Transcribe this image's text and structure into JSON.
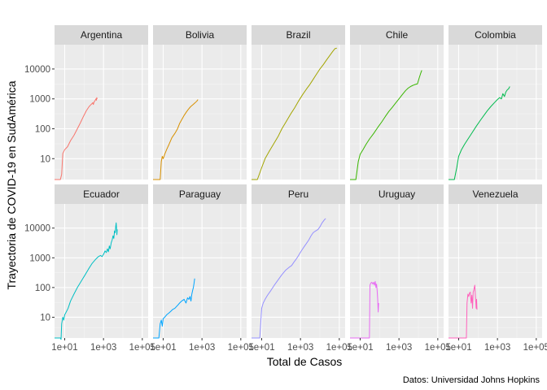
{
  "chart_data": {
    "type": "line",
    "title": "",
    "xlabel": "Total de Casos",
    "ylabel": "Trayectoria de COVID-19 en SudAmérica",
    "caption": "Datos: Universidad Johns Hopkins",
    "x_scale": "log10",
    "y_scale": "log10",
    "xlim": [
      3,
      200000
    ],
    "ylim": [
      2,
      65000
    ],
    "x_ticks": [
      10,
      1000,
      100000
    ],
    "x_tick_labels": [
      "1e+01",
      "1e+03",
      "1e+05"
    ],
    "y_ticks": [
      10,
      100,
      1000,
      10000
    ],
    "y_tick_labels": [
      "10",
      "100",
      "1000",
      "10000"
    ],
    "grid": true,
    "legend": "none",
    "series": [
      {
        "name": "Argentina",
        "color": "#F8766D",
        "points": [
          [
            3,
            2
          ],
          [
            6,
            2
          ],
          [
            7,
            3
          ],
          [
            8,
            15
          ],
          [
            10,
            20
          ],
          [
            14,
            25
          ],
          [
            20,
            40
          ],
          [
            30,
            60
          ],
          [
            45,
            100
          ],
          [
            65,
            160
          ],
          [
            90,
            250
          ],
          [
            130,
            400
          ],
          [
            180,
            550
          ],
          [
            230,
            650
          ],
          [
            260,
            700
          ],
          [
            280,
            750
          ],
          [
            300,
            650
          ],
          [
            330,
            800
          ],
          [
            360,
            850
          ],
          [
            390,
            950
          ],
          [
            410,
            1000
          ],
          [
            430,
            900
          ],
          [
            450,
            1100
          ],
          [
            480,
            1000
          ]
        ]
      },
      {
        "name": "Bolivia",
        "color": "#D89000",
        "points": [
          [
            3,
            2
          ],
          [
            7,
            2
          ],
          [
            8,
            8
          ],
          [
            9,
            12
          ],
          [
            10,
            10
          ],
          [
            12,
            14
          ],
          [
            15,
            20
          ],
          [
            20,
            30
          ],
          [
            28,
            50
          ],
          [
            40,
            70
          ],
          [
            55,
            100
          ],
          [
            70,
            150
          ],
          [
            90,
            200
          ],
          [
            120,
            280
          ],
          [
            160,
            370
          ],
          [
            200,
            450
          ],
          [
            260,
            550
          ],
          [
            350,
            650
          ],
          [
            450,
            750
          ],
          [
            550,
            850
          ],
          [
            620,
            950
          ]
        ]
      },
      {
        "name": "Brazil",
        "color": "#A3A500",
        "points": [
          [
            3,
            2
          ],
          [
            6,
            2
          ],
          [
            10,
            5
          ],
          [
            15,
            10
          ],
          [
            25,
            18
          ],
          [
            40,
            30
          ],
          [
            70,
            55
          ],
          [
            110,
            100
          ],
          [
            180,
            170
          ],
          [
            300,
            300
          ],
          [
            500,
            500
          ],
          [
            800,
            850
          ],
          [
            1300,
            1400
          ],
          [
            2000,
            2100
          ],
          [
            3000,
            3000
          ],
          [
            4500,
            4500
          ],
          [
            6500,
            6500
          ],
          [
            9500,
            9500
          ],
          [
            15000,
            14000
          ],
          [
            22000,
            20000
          ],
          [
            32000,
            28000
          ],
          [
            45000,
            38000
          ],
          [
            60000,
            48000
          ],
          [
            75000,
            50000
          ]
        ]
      },
      {
        "name": "Chile",
        "color": "#39B600",
        "points": [
          [
            3,
            2
          ],
          [
            6,
            2
          ],
          [
            8,
            8
          ],
          [
            10,
            14
          ],
          [
            14,
            20
          ],
          [
            20,
            30
          ],
          [
            30,
            45
          ],
          [
            50,
            70
          ],
          [
            80,
            110
          ],
          [
            130,
            170
          ],
          [
            200,
            260
          ],
          [
            300,
            380
          ],
          [
            450,
            520
          ],
          [
            700,
            750
          ],
          [
            1000,
            1000
          ],
          [
            1500,
            1400
          ],
          [
            2200,
            1900
          ],
          [
            3000,
            2300
          ],
          [
            4000,
            2600
          ],
          [
            5000,
            2800
          ],
          [
            6500,
            3000
          ],
          [
            9000,
            3200
          ],
          [
            11000,
            5000
          ],
          [
            13000,
            7000
          ],
          [
            15000,
            9000
          ]
        ]
      },
      {
        "name": "Colombia",
        "color": "#00BB4E",
        "points": [
          [
            3,
            2
          ],
          [
            6,
            2
          ],
          [
            8,
            5
          ],
          [
            10,
            12
          ],
          [
            14,
            20
          ],
          [
            20,
            30
          ],
          [
            30,
            45
          ],
          [
            50,
            75
          ],
          [
            80,
            120
          ],
          [
            130,
            190
          ],
          [
            200,
            280
          ],
          [
            300,
            400
          ],
          [
            450,
            550
          ],
          [
            700,
            750
          ],
          [
            1000,
            950
          ],
          [
            1300,
            1100
          ],
          [
            1600,
            1000
          ],
          [
            1900,
            1500
          ],
          [
            2300,
            1200
          ],
          [
            2700,
            1700
          ],
          [
            3200,
            2000
          ],
          [
            3800,
            2200
          ],
          [
            4300,
            2600
          ]
        ]
      },
      {
        "name": "Ecuador",
        "color": "#00BFC4",
        "points": [
          [
            3,
            2
          ],
          [
            6,
            2
          ],
          [
            6.5,
            1.8
          ],
          [
            7,
            6
          ],
          [
            8,
            10
          ],
          [
            9,
            8
          ],
          [
            10,
            12
          ],
          [
            12,
            15
          ],
          [
            15,
            20
          ],
          [
            20,
            35
          ],
          [
            30,
            60
          ],
          [
            45,
            100
          ],
          [
            70,
            160
          ],
          [
            110,
            260
          ],
          [
            170,
            420
          ],
          [
            260,
            650
          ],
          [
            400,
            900
          ],
          [
            550,
            1100
          ],
          [
            700,
            1200
          ],
          [
            850,
            1100
          ],
          [
            1000,
            1300
          ],
          [
            1200,
            1700
          ],
          [
            1400,
            1500
          ],
          [
            1600,
            2000
          ],
          [
            1800,
            1600
          ],
          [
            2000,
            2500
          ],
          [
            2200,
            2000
          ],
          [
            2500,
            3200
          ],
          [
            2800,
            4000
          ],
          [
            3100,
            5500
          ],
          [
            3400,
            4500
          ],
          [
            3700,
            8000
          ],
          [
            4000,
            7000
          ],
          [
            4300,
            12000
          ],
          [
            4500,
            15000
          ],
          [
            4700,
            10000
          ],
          [
            4900,
            6000
          ],
          [
            5100,
            9000
          ]
        ]
      },
      {
        "name": "Paraguay",
        "color": "#00A5FF",
        "points": [
          [
            3,
            2
          ],
          [
            6,
            2
          ],
          [
            7,
            6
          ],
          [
            8,
            8
          ],
          [
            9,
            5
          ],
          [
            10,
            9
          ],
          [
            12,
            10
          ],
          [
            15,
            12
          ],
          [
            20,
            14
          ],
          [
            25,
            16
          ],
          [
            30,
            18
          ],
          [
            40,
            20
          ],
          [
            55,
            25
          ],
          [
            70,
            30
          ],
          [
            90,
            35
          ],
          [
            120,
            40
          ],
          [
            150,
            30
          ],
          [
            180,
            45
          ],
          [
            210,
            40
          ],
          [
            240,
            50
          ],
          [
            270,
            35
          ],
          [
            300,
            60
          ],
          [
            330,
            80
          ],
          [
            360,
            100
          ],
          [
            390,
            140
          ],
          [
            420,
            200
          ]
        ]
      },
      {
        "name": "Peru",
        "color": "#9590FF",
        "points": [
          [
            3,
            2
          ],
          [
            8,
            2
          ],
          [
            10,
            20
          ],
          [
            12,
            30
          ],
          [
            15,
            40
          ],
          [
            20,
            55
          ],
          [
            30,
            80
          ],
          [
            45,
            120
          ],
          [
            70,
            180
          ],
          [
            110,
            270
          ],
          [
            170,
            380
          ],
          [
            260,
            480
          ],
          [
            350,
            550
          ],
          [
            450,
            700
          ],
          [
            600,
            900
          ],
          [
            800,
            1200
          ],
          [
            1100,
            1700
          ],
          [
            1500,
            2300
          ],
          [
            2000,
            3000
          ],
          [
            2700,
            4000
          ],
          [
            3500,
            5500
          ],
          [
            4500,
            7000
          ],
          [
            6000,
            8000
          ],
          [
            8000,
            9000
          ],
          [
            10000,
            11000
          ],
          [
            13000,
            15000
          ],
          [
            17000,
            19000
          ],
          [
            20000,
            21000
          ]
        ]
      },
      {
        "name": "Uruguay",
        "color": "#E76BF3",
        "points": [
          [
            3,
            2
          ],
          [
            7,
            2
          ],
          [
            30,
            2
          ],
          [
            32,
            120
          ],
          [
            35,
            140
          ],
          [
            40,
            150
          ],
          [
            45,
            130
          ],
          [
            50,
            150
          ],
          [
            55,
            120
          ],
          [
            60,
            160
          ],
          [
            65,
            100
          ],
          [
            70,
            130
          ],
          [
            75,
            80
          ],
          [
            80,
            40
          ],
          [
            85,
            15
          ],
          [
            90,
            30
          ]
        ]
      },
      {
        "name": "Venezuela",
        "color": "#FF62BC",
        "points": [
          [
            3,
            2
          ],
          [
            7,
            2
          ],
          [
            25,
            2
          ],
          [
            27,
            30
          ],
          [
            30,
            60
          ],
          [
            33,
            50
          ],
          [
            36,
            65
          ],
          [
            40,
            70
          ],
          [
            44,
            30
          ],
          [
            48,
            55
          ],
          [
            52,
            20
          ],
          [
            56,
            70
          ],
          [
            60,
            80
          ],
          [
            64,
            100
          ],
          [
            68,
            120
          ],
          [
            72,
            60
          ],
          [
            76,
            35
          ],
          [
            80,
            20
          ],
          [
            84,
            40
          ],
          [
            88,
            18
          ]
        ]
      }
    ]
  }
}
